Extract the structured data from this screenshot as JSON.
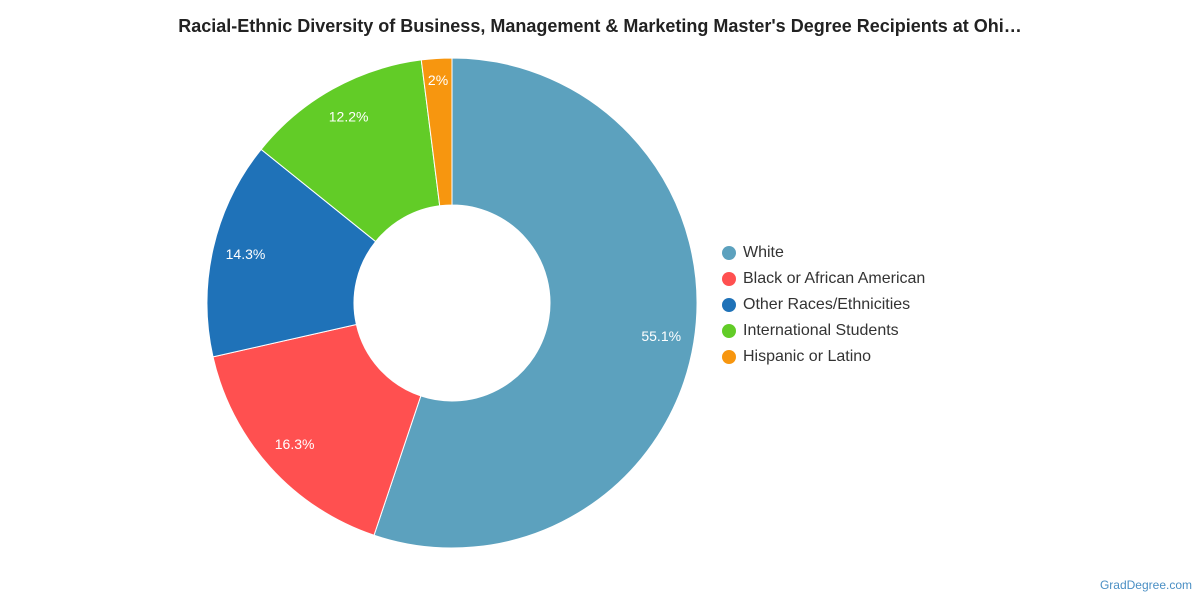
{
  "chart_data": {
    "type": "pie",
    "title": "Racial-Ethnic Diversity of Business, Management & Marketing Master's Degree Recipients at Ohi…",
    "slices": [
      {
        "label": "White",
        "value": 55.1,
        "display": "55.1%",
        "color": "#5ca1be"
      },
      {
        "label": "Black or African American",
        "value": 16.3,
        "display": "16.3%",
        "color": "#ff5050"
      },
      {
        "label": "Other Races/Ethnicities",
        "value": 14.3,
        "display": "14.3%",
        "color": "#1f72b8"
      },
      {
        "label": "International Students",
        "value": 12.2,
        "display": "12.2%",
        "color": "#62cc27"
      },
      {
        "label": "Hispanic or Latino",
        "value": 2.0,
        "display": "2%",
        "color": "#f7960f"
      }
    ],
    "legend_position": "right",
    "donut": true
  },
  "watermark": "GradDegree.com"
}
